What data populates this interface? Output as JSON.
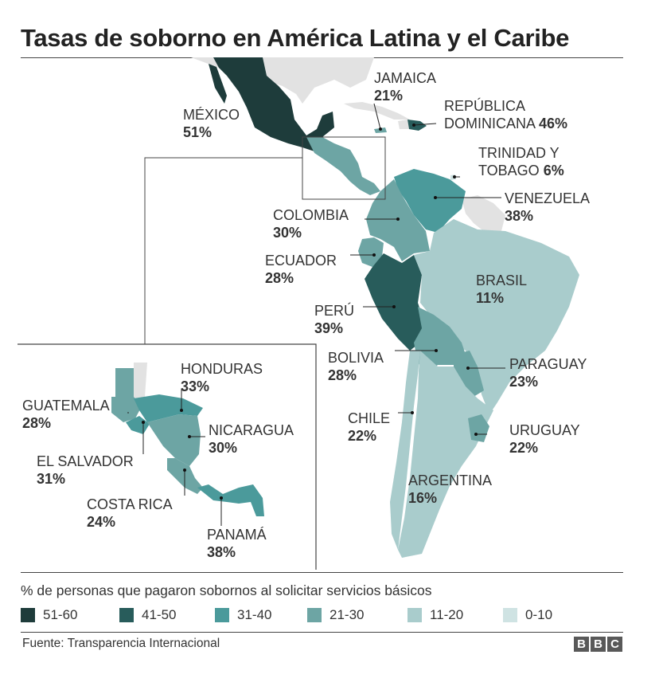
{
  "title": "Tasas de soborno en América Latina y el Caribe",
  "colors": {
    "51-60": "#1e3c3b",
    "41-50": "#285c5b",
    "31-40": "#4b9a9b",
    "21-30": "#6da5a4",
    "11-20": "#a9cccc",
    "0-10": "#cfe3e3",
    "no_data": "#e2e2e2"
  },
  "countries": {
    "mexico": {
      "name": "MÉXICO",
      "value": "51%"
    },
    "jamaica": {
      "name": "JAMAICA",
      "value": "21%"
    },
    "dominican_republic": {
      "name1": "REPÚBLICA",
      "name2": "DOMINICANA",
      "value": "46%"
    },
    "trinidad": {
      "name1": "TRINIDAD Y",
      "name2": "TOBAGO",
      "value": "6%"
    },
    "venezuela": {
      "name": "VENEZUELA",
      "value": "38%"
    },
    "colombia": {
      "name": "COLOMBIA",
      "value": "30%"
    },
    "ecuador": {
      "name": "ECUADOR",
      "value": "28%"
    },
    "brasil": {
      "name": "BRASIL",
      "value": "11%"
    },
    "peru": {
      "name": "PERÚ",
      "value": "39%"
    },
    "bolivia": {
      "name": "BOLIVIA",
      "value": "28%"
    },
    "paraguay": {
      "name": "PARAGUAY",
      "value": "23%"
    },
    "chile": {
      "name": "CHILE",
      "value": "22%"
    },
    "uruguay": {
      "name": "URUGUAY",
      "value": "22%"
    },
    "argentina": {
      "name": "ARGENTINA",
      "value": "16%"
    },
    "guatemala": {
      "name": "GUATEMALA",
      "value": "28%"
    },
    "honduras": {
      "name": "HONDURAS",
      "value": "33%"
    },
    "nicaragua": {
      "name": "NICARAGUA",
      "value": "30%"
    },
    "el_salvador": {
      "name": "EL SALVADOR",
      "value": "31%"
    },
    "costa_rica": {
      "name": "COSTA RICA",
      "value": "24%"
    },
    "panama": {
      "name": "PANAMÁ",
      "value": "38%"
    }
  },
  "legend": {
    "title": "% de personas que pagaron sobornos al solicitar servicios básicos",
    "items": [
      {
        "label": "51-60",
        "color": "#1e3c3b"
      },
      {
        "label": "41-50",
        "color": "#285c5b"
      },
      {
        "label": "31-40",
        "color": "#4b9a9b"
      },
      {
        "label": "21-30",
        "color": "#6da5a4"
      },
      {
        "label": "11-20",
        "color": "#a9cccc"
      },
      {
        "label": "0-10",
        "color": "#cfe3e3"
      }
    ]
  },
  "source": "Fuente: Transparencia Internacional",
  "logo": {
    "letters": [
      "B",
      "B",
      "C"
    ]
  }
}
